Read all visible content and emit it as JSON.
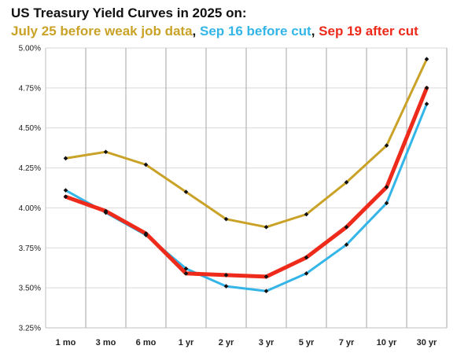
{
  "chart_data": {
    "type": "line",
    "title": "US Treasury Yield Curves in 2025 on:",
    "subtitle_parts": [
      {
        "text": "July 25 before weak job data",
        "color": "#C9A227"
      },
      {
        "text": ", ",
        "color": "#111111"
      },
      {
        "text": "Sep 16 before cut",
        "color": "#33B5E8"
      },
      {
        "text": ", ",
        "color": "#111111"
      },
      {
        "text": "Sep 19 after cut",
        "color": "#EE2A1B"
      }
    ],
    "categories": [
      "1 mo",
      "3 mo",
      "6 mo",
      "1 yr",
      "2 yr",
      "3 yr",
      "5 yr",
      "7 yr",
      "10 yr",
      "30 yr"
    ],
    "ylim": [
      3.25,
      5.0
    ],
    "yticks": [
      "3.25%",
      "3.50%",
      "3.75%",
      "4.00%",
      "4.25%",
      "4.50%",
      "4.75%",
      "5.00%"
    ],
    "ytick_values": [
      3.25,
      3.5,
      3.75,
      4.0,
      4.25,
      4.5,
      4.75,
      5.0
    ],
    "grid": "horizontal and vertical",
    "legend": "none",
    "series": [
      {
        "name": "July 25 before weak job data",
        "color": "#C9A227",
        "markers": true,
        "values": [
          4.31,
          4.35,
          4.27,
          4.1,
          3.93,
          3.88,
          3.96,
          4.16,
          4.39,
          4.93
        ]
      },
      {
        "name": "Sep 16 before cut",
        "color": "#33B5E8",
        "markers": true,
        "values": [
          4.11,
          3.97,
          3.83,
          3.62,
          3.51,
          3.48,
          3.59,
          3.77,
          4.03,
          4.65
        ]
      },
      {
        "name": "Sep 19 after cut",
        "color": "#EE2A1B",
        "markers": true,
        "values": [
          4.07,
          3.98,
          3.84,
          3.59,
          3.58,
          3.57,
          3.69,
          3.88,
          4.13,
          4.75
        ]
      }
    ]
  }
}
